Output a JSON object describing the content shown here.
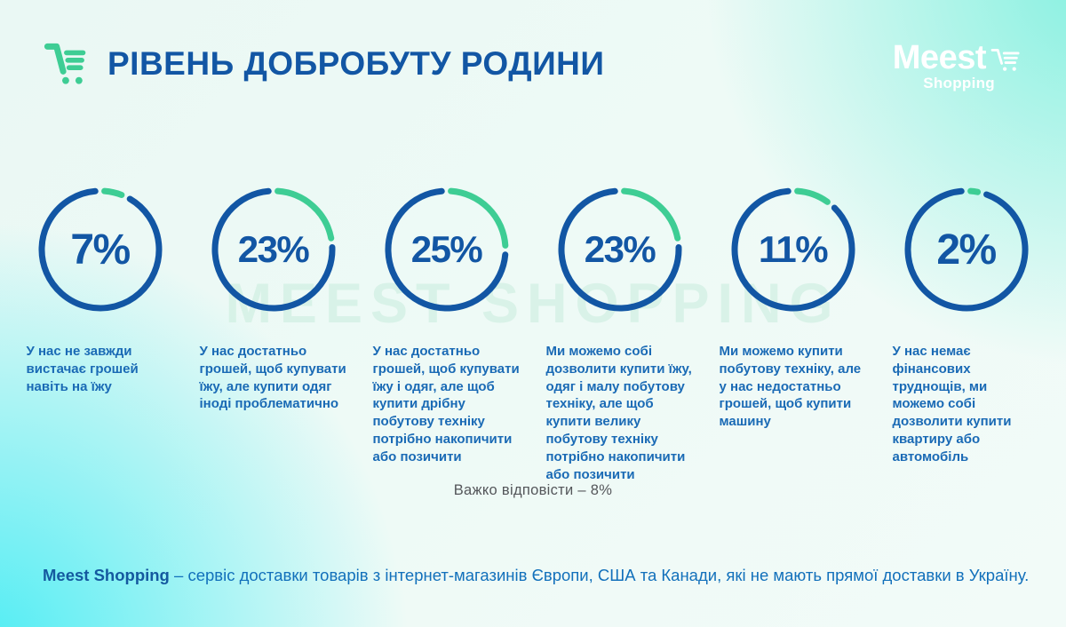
{
  "header": {
    "title": "РІВЕНЬ ДОБРОБУТУ РОДИНИ",
    "logo": {
      "brand": "Meest",
      "sub": "Shopping"
    }
  },
  "watermark": "MEEST SHOPPING",
  "chart_data": {
    "type": "donut",
    "unit": "%",
    "title": "Рівень добробуту родини",
    "legend_position": "below-each-donut",
    "items": [
      {
        "value": 7,
        "label": "У нас не завжди вистачає грошей навіть на їжу"
      },
      {
        "value": 23,
        "label": "У нас достатньо грошей, щоб купувати їжу, але купити одяг іноді проблематично"
      },
      {
        "value": 25,
        "label": "У нас достатньо грошей, щоб купувати їжу і одяг, але щоб купити дрібну побутову техніку потрібно накопичити або позичити"
      },
      {
        "value": 23,
        "label": "Ми можемо собі дозволити купити їжу, одяг і малу побутову техніку, але щоб купити велику побутову техніку потрібно накопичити або позичити"
      },
      {
        "value": 11,
        "label": "Ми можемо купити побутову техніку, але у нас недостатньо грошей, щоб купити машину"
      },
      {
        "value": 2,
        "label": "У нас немає фінансових труднощів, ми можемо собі дозволити купити квартиру або автомобіль"
      }
    ],
    "note": "Важко відповісти – 8%",
    "colors": {
      "ring": "#1256a4",
      "accent": "#3ecd94"
    }
  },
  "footer": {
    "brand": "Meest Shopping",
    "text": "– сервіс доставки товарів з інтернет-магазинів Європи, США та Канади, які не мають прямої доставки в Україну."
  },
  "colors": {
    "title_blue": "#1256a4",
    "desc_blue": "#1a6ab5",
    "green": "#3ecd94",
    "note_gray": "#54565a",
    "bg_cyan": "#45ecf3",
    "bg_turquoise": "#80f0df"
  }
}
